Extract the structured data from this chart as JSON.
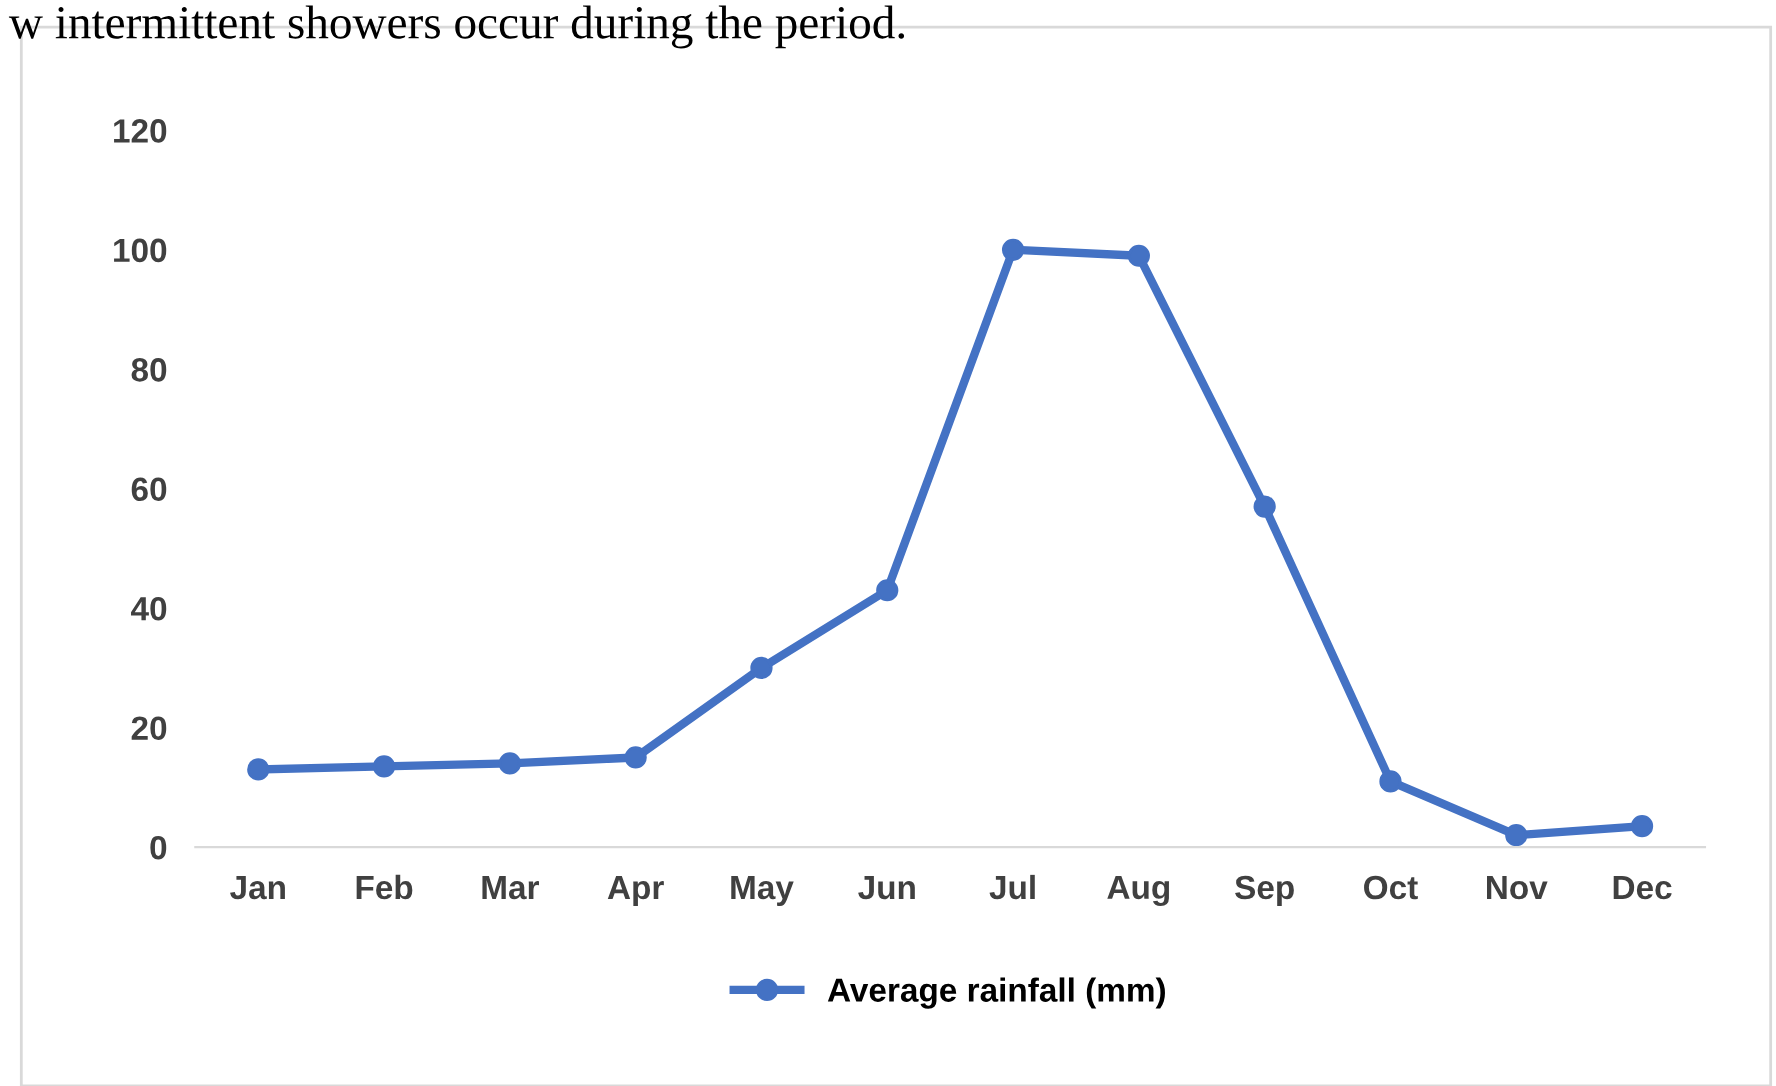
{
  "chart_data": {
    "type": "line",
    "annotations": [
      "w intermittent showers occur during the period."
    ],
    "categories": [
      "Jan",
      "Feb",
      "Mar",
      "Apr",
      "May",
      "Jun",
      "Jul",
      "Aug",
      "Sep",
      "Oct",
      "Nov",
      "Dec"
    ],
    "series": [
      {
        "name": "Average rainfall (mm)",
        "color": "#4472c4",
        "values": [
          13,
          13.5,
          14,
          15,
          30,
          43,
          100,
          99,
          57,
          11,
          2,
          3.5
        ]
      }
    ],
    "ylim": [
      0,
      120
    ],
    "yticks": [
      0,
      20,
      40,
      60,
      80,
      100,
      120
    ],
    "grid": false,
    "legend": "bottom",
    "marker": "circle",
    "line_style": "solid"
  }
}
